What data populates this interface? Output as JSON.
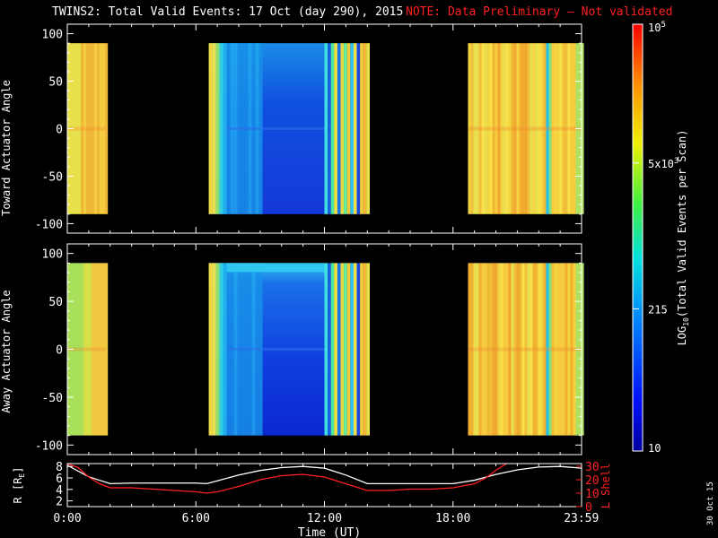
{
  "title": "TWINS2: Total Valid Events: 17 Oct (day 290), 2015",
  "note": "NOTE: Data Preliminary — Not validated",
  "colors": {
    "background": "#000000",
    "axes": "#ffffff",
    "note": "#ff2020",
    "r_line": "#ffffff",
    "l_shell_line": "#ff2020"
  },
  "chart_data": [
    {
      "type": "heatmap",
      "ylabel": "Toward Actuator Angle",
      "ylim": [
        -110,
        110
      ],
      "yticks": [
        "100",
        "50",
        "0",
        "-50",
        "-100"
      ],
      "xlim": [
        0,
        24
      ],
      "y_coverage": [
        -90,
        90
      ],
      "time_blocks": [
        {
          "start": 0.0,
          "end": 1.8,
          "level": "orange-yellow"
        },
        {
          "start": 6.6,
          "end": 12.0,
          "level": "blue"
        },
        {
          "start": 12.0,
          "end": 14.0,
          "level": "mixed"
        },
        {
          "start": 18.7,
          "end": 24.0,
          "level": "yellow-orange"
        }
      ]
    },
    {
      "type": "heatmap",
      "ylabel": "Away Actuator Angle",
      "ylim": [
        -110,
        110
      ],
      "yticks": [
        "100",
        "50",
        "0",
        "-50",
        "-100"
      ],
      "xlim": [
        0,
        24
      ],
      "y_coverage": [
        -90,
        90
      ],
      "time_blocks": [
        {
          "start": 0.0,
          "end": 1.8,
          "level": "yellow-green"
        },
        {
          "start": 6.6,
          "end": 12.0,
          "level": "blue"
        },
        {
          "start": 12.0,
          "end": 14.0,
          "level": "mixed"
        },
        {
          "start": 18.7,
          "end": 24.0,
          "level": "yellow-orange"
        }
      ]
    },
    {
      "type": "line",
      "xlabel": "Time (UT)",
      "xticks": [
        "0:00",
        "6:00",
        "12:00",
        "18:00",
        "23:59"
      ],
      "ylabel_left": "R [Re]",
      "yticks_left": [
        "8",
        "6",
        "4",
        "2"
      ],
      "ylabel_right": "L Shell",
      "yticks_right": [
        "30",
        "20",
        "10",
        "0"
      ],
      "ylim_left": [
        1,
        8.5
      ],
      "ylim_right": [
        0,
        32
      ],
      "series": [
        {
          "name": "R [Re]",
          "axis": "left",
          "x": [
            0,
            0.5,
            1,
            1.5,
            2,
            3,
            4,
            5,
            6,
            6.5,
            7,
            8,
            9,
            10,
            11,
            12,
            13,
            14,
            15,
            16,
            17,
            18,
            19,
            20,
            21,
            22,
            23,
            23.99
          ],
          "y": [
            8.2,
            7.2,
            6.2,
            5.6,
            5.0,
            5.1,
            5.1,
            5.1,
            5.1,
            5.0,
            5.5,
            6.5,
            7.3,
            7.8,
            8.0,
            7.7,
            6.5,
            5.0,
            5.0,
            5.0,
            5.0,
            5.0,
            5.6,
            6.6,
            7.4,
            7.9,
            8.0,
            7.7
          ]
        },
        {
          "name": "L Shell",
          "axis": "right",
          "x": [
            0,
            0.5,
            1,
            1.5,
            2,
            3,
            4,
            5,
            6,
            6.5,
            7,
            8,
            9,
            10,
            11,
            12,
            13,
            14,
            15,
            16,
            17,
            18,
            19,
            19.5,
            20,
            20.6
          ],
          "y": [
            32,
            29,
            22,
            17,
            14,
            14,
            13,
            12,
            11,
            10,
            11,
            15,
            20,
            23,
            24,
            22,
            17,
            12,
            12,
            13,
            13,
            14,
            17,
            21,
            27,
            33
          ]
        }
      ]
    }
  ],
  "colorbar": {
    "label": "LOG10(Total Valid Events per Scan)",
    "label_main": "LOG",
    "label_sub": "10",
    "label_tail": "(Total Valid Events per Scan)",
    "scale": "log",
    "range": [
      10,
      100000
    ],
    "ticks": [
      {
        "value": 100000,
        "base": "10",
        "exp": "5"
      },
      {
        "value": 5000,
        "base": "5x10",
        "exp": "3"
      },
      {
        "value": 215,
        "base": "215",
        "exp": ""
      },
      {
        "value": 10,
        "base": "10",
        "exp": ""
      }
    ]
  },
  "date_stamp": "30 Oct 15",
  "r_label": {
    "main": "R [R",
    "sub": "E",
    "tail": "]"
  }
}
